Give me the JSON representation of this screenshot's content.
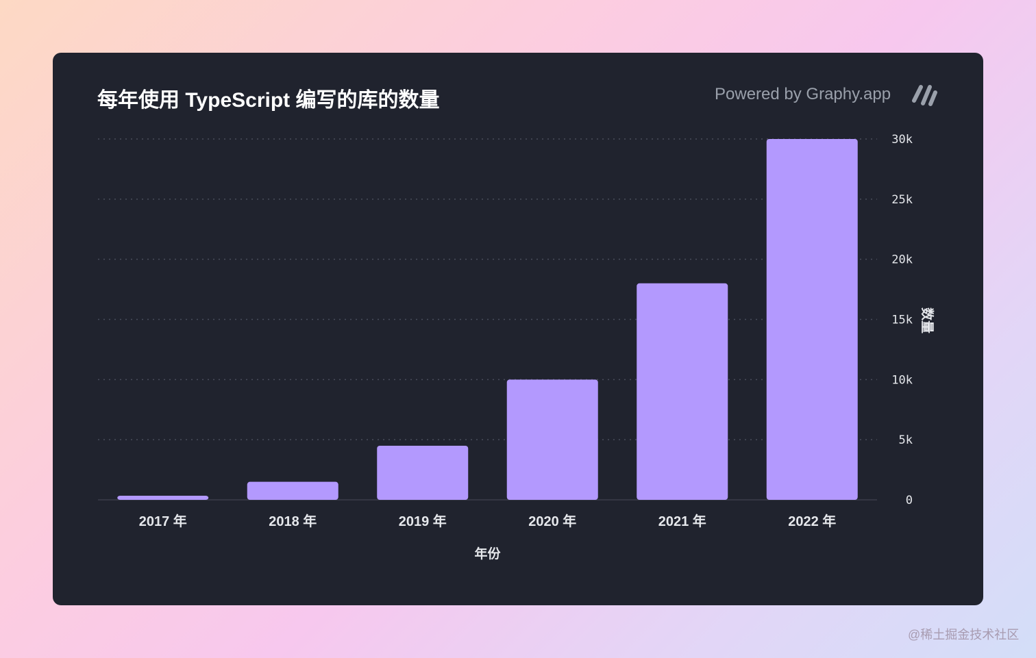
{
  "header": {
    "title": "每年使用 TypeScript 编写的库的数量",
    "powered_by": "Powered by Graphy.app"
  },
  "icons": {
    "brand_logo": "graphy-slash-logo"
  },
  "colors": {
    "bar": "#b399fe",
    "card_bg": "#20232e",
    "text": "#e6e8ec",
    "grid": "#4a4e5c"
  },
  "watermark": "@稀土掘金技术社区",
  "chart_data": {
    "type": "bar",
    "title": "每年使用 TypeScript 编写的库的数量",
    "categories": [
      "2017 年",
      "2018 年",
      "2019 年",
      "2020 年",
      "2021 年",
      "2022 年"
    ],
    "values": [
      300,
      1500,
      4500,
      10000,
      18000,
      30000
    ],
    "xlabel": "年份",
    "ylabel": "数量",
    "ylim": [
      0,
      30000
    ],
    "yticks": [
      0,
      5000,
      10000,
      15000,
      20000,
      25000,
      30000
    ],
    "ytick_labels": [
      "0",
      "5k",
      "10k",
      "15k",
      "20k",
      "25k",
      "30k"
    ],
    "y_axis_position": "right",
    "grid": true
  }
}
